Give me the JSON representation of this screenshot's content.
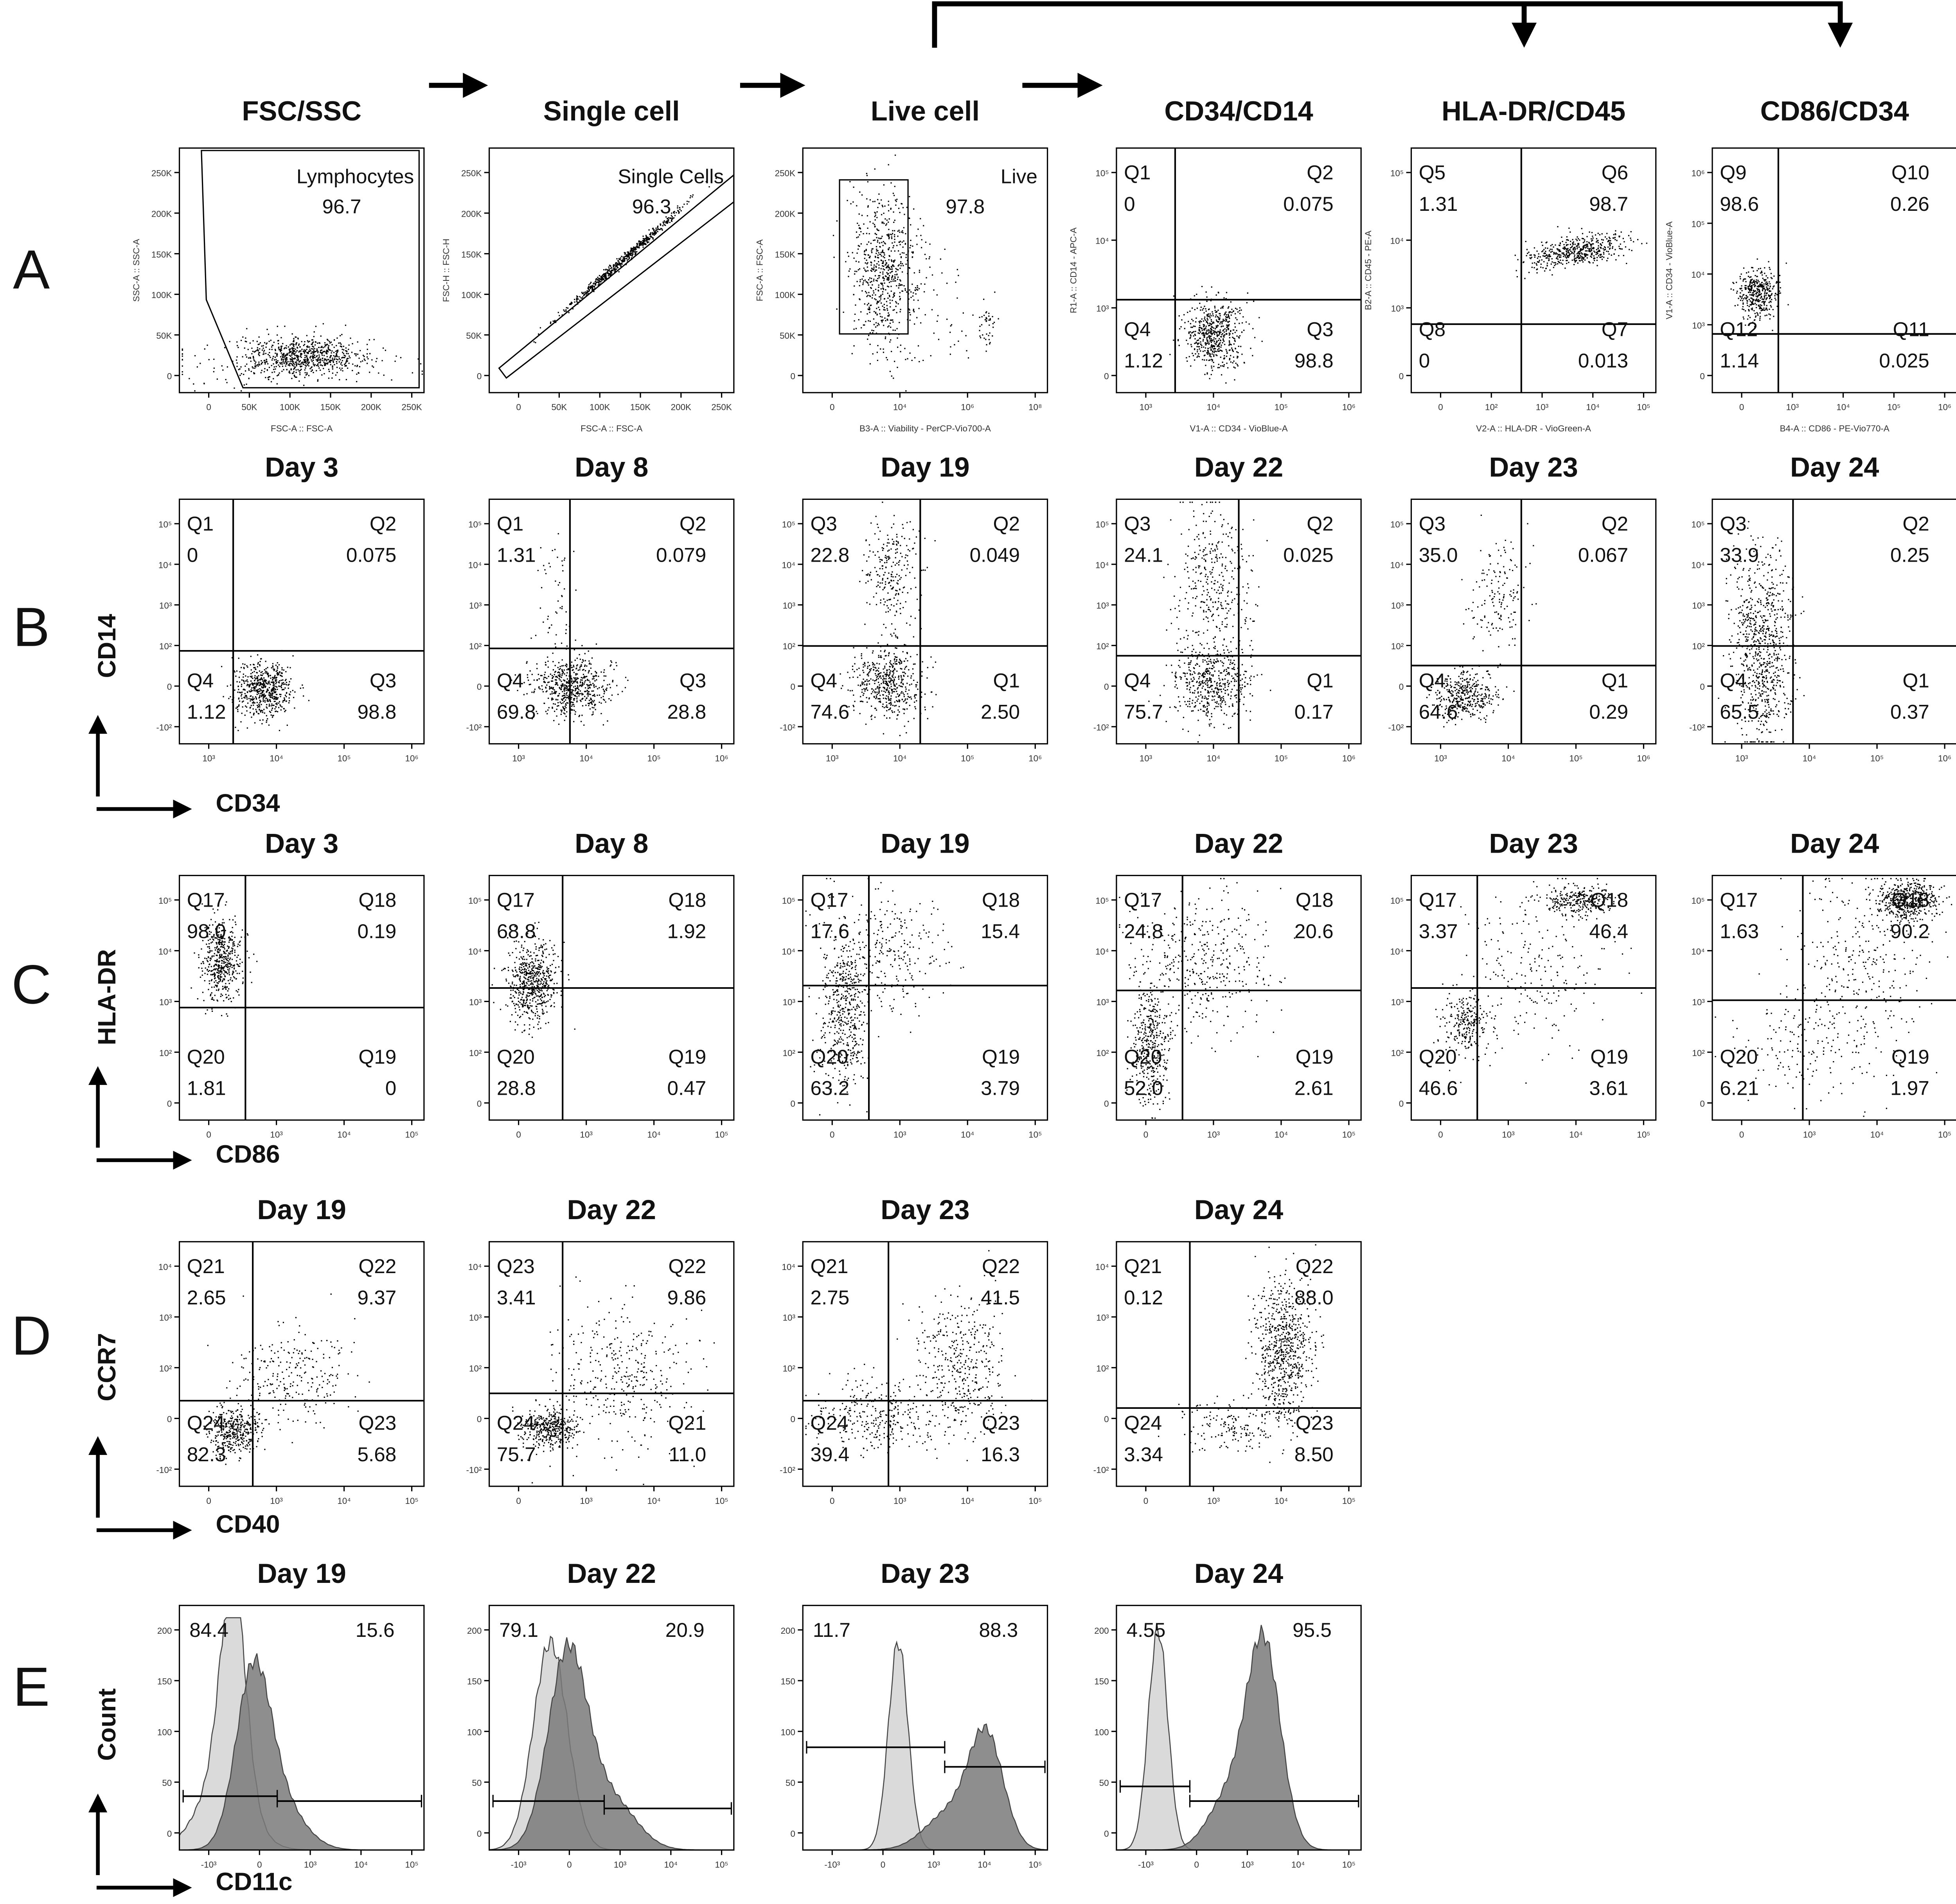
{
  "header_title_groups": null,
  "rows": [
    {
      "label": "A",
      "panels": [
        {
          "title": "FSC/SSC",
          "gate": "Lymphocytes",
          "value": "96.7",
          "x_axis": "FSC-A :: FSC-A",
          "y_axis": "SSC-A :: SSC-A",
          "xticks": [
            "0",
            "50K",
            "100K",
            "150K",
            "200K",
            "250K"
          ],
          "yticks": [
            "0",
            "50K",
            "100K",
            "150K",
            "200K",
            "250K"
          ]
        },
        {
          "title": "Single cell",
          "gate": "Single Cells",
          "value": "96.3",
          "x_axis": "FSC-A :: FSC-A",
          "y_axis": "FSC-H :: FSC-H",
          "xticks": [
            "0",
            "50K",
            "100K",
            "150K",
            "200K",
            "250K"
          ],
          "yticks": [
            "0",
            "50K",
            "100K",
            "150K",
            "200K",
            "250K"
          ]
        },
        {
          "title": "Live cell",
          "gate": "Live",
          "value": "97.8",
          "x_axis": "B3-A :: Viability - PerCP-Vio700-A",
          "y_axis": "FSC-A :: FSC-A",
          "xticks": [
            "0",
            "10⁴",
            "10⁶",
            "10⁸"
          ],
          "yticks": [
            "0",
            "50K",
            "100K",
            "150K",
            "200K",
            "250K"
          ]
        },
        {
          "title": "CD34/CD14",
          "quadrants": [
            {
              "name": "Q1",
              "value": "0"
            },
            {
              "name": "Q2",
              "value": "0.075"
            },
            {
              "name": "Q4",
              "value": "1.12"
            },
            {
              "name": "Q3",
              "value": "98.8"
            }
          ],
          "x_axis": "V1-A :: CD34 - VioBlue-A",
          "y_axis": "R1-A :: CD14 - APC-A",
          "xticks": [
            "10³",
            "10⁴",
            "10⁵",
            "10⁶"
          ],
          "yticks": [
            "0",
            "10³",
            "10⁴",
            "10⁵"
          ]
        },
        {
          "title": "HLA-DR/CD45",
          "quadrants": [
            {
              "name": "Q5",
              "value": "1.31"
            },
            {
              "name": "Q6",
              "value": "98.7"
            },
            {
              "name": "Q8",
              "value": "0"
            },
            {
              "name": "Q7",
              "value": "0.013"
            }
          ],
          "x_axis": "V2-A :: HLA-DR - VioGreen-A",
          "y_axis": "B2-A :: CD45 - PE-A",
          "xticks": [
            "0",
            "10²",
            "10³",
            "10⁴",
            "10⁵"
          ],
          "yticks": [
            "0",
            "10³",
            "10⁴",
            "10⁵"
          ]
        },
        {
          "title": "CD86/CD34",
          "quadrants": [
            {
              "name": "Q9",
              "value": "98.6"
            },
            {
              "name": "Q10",
              "value": "0.26"
            },
            {
              "name": "Q12",
              "value": "1.14"
            },
            {
              "name": "Q11",
              "value": "0.025"
            }
          ],
          "x_axis": "B4-A :: CD86 - PE-Vio770-A",
          "y_axis": "V1-A :: CD34 - VioBlue-A",
          "xticks": [
            "0",
            "10³",
            "10⁴",
            "10⁵",
            "10⁶"
          ],
          "yticks": [
            "0",
            "10³",
            "10⁴",
            "10⁵",
            "10⁶"
          ]
        }
      ]
    },
    {
      "label": "B",
      "x_axis": "CD34",
      "y_axis": "CD14",
      "xticks": [
        "10³",
        "10⁴",
        "10⁵",
        "10⁶"
      ],
      "yticks": [
        "-10²",
        "0",
        "10²",
        "10³",
        "10⁴",
        "10⁵"
      ],
      "panels": [
        {
          "title": "Day 3",
          "quadrants": [
            {
              "name": "Q1",
              "value": "0"
            },
            {
              "name": "Q2",
              "value": "0.075"
            },
            {
              "name": "Q4",
              "value": "1.12"
            },
            {
              "name": "Q3",
              "value": "98.8"
            }
          ]
        },
        {
          "title": "Day 8",
          "quadrants": [
            {
              "name": "Q1",
              "value": "1.31"
            },
            {
              "name": "Q2",
              "value": "0.079"
            },
            {
              "name": "Q4",
              "value": "69.8"
            },
            {
              "name": "Q3",
              "value": "28.8"
            }
          ]
        },
        {
          "title": "Day 19",
          "quadrants": [
            {
              "name": "Q3",
              "value": "22.8"
            },
            {
              "name": "Q2",
              "value": "0.049"
            },
            {
              "name": "Q4",
              "value": "74.6"
            },
            {
              "name": "Q1",
              "value": "2.50"
            }
          ]
        },
        {
          "title": "Day 22",
          "quadrants": [
            {
              "name": "Q3",
              "value": "24.1"
            },
            {
              "name": "Q2",
              "value": "0.025"
            },
            {
              "name": "Q4",
              "value": "75.7"
            },
            {
              "name": "Q1",
              "value": "0.17"
            }
          ]
        },
        {
          "title": "Day 23",
          "quadrants": [
            {
              "name": "Q3",
              "value": "35.0"
            },
            {
              "name": "Q2",
              "value": "0.067"
            },
            {
              "name": "Q4",
              "value": "64.6"
            },
            {
              "name": "Q1",
              "value": "0.29"
            }
          ]
        },
        {
          "title": "Day 24",
          "quadrants": [
            {
              "name": "Q3",
              "value": "33.9"
            },
            {
              "name": "Q2",
              "value": "0.25"
            },
            {
              "name": "Q4",
              "value": "65.5"
            },
            {
              "name": "Q1",
              "value": "0.37"
            }
          ]
        }
      ]
    },
    {
      "label": "C",
      "x_axis": "CD86",
      "y_axis": "HLA-DR",
      "xticks": [
        "0",
        "10³",
        "10⁴",
        "10⁵"
      ],
      "yticks": [
        "0",
        "10²",
        "10³",
        "10⁴",
        "10⁵"
      ],
      "panels": [
        {
          "title": "Day 3",
          "quadrants": [
            {
              "name": "Q17",
              "value": "98.0"
            },
            {
              "name": "Q18",
              "value": "0.19"
            },
            {
              "name": "Q20",
              "value": "1.81"
            },
            {
              "name": "Q19",
              "value": "0"
            }
          ]
        },
        {
          "title": "Day 8",
          "quadrants": [
            {
              "name": "Q17",
              "value": "68.8"
            },
            {
              "name": "Q18",
              "value": "1.92"
            },
            {
              "name": "Q20",
              "value": "28.8"
            },
            {
              "name": "Q19",
              "value": "0.47"
            }
          ]
        },
        {
          "title": "Day 19",
          "quadrants": [
            {
              "name": "Q17",
              "value": "17.6"
            },
            {
              "name": "Q18",
              "value": "15.4"
            },
            {
              "name": "Q20",
              "value": "63.2"
            },
            {
              "name": "Q19",
              "value": "3.79"
            }
          ]
        },
        {
          "title": "Day 22",
          "quadrants": [
            {
              "name": "Q17",
              "value": "24.8"
            },
            {
              "name": "Q18",
              "value": "20.6"
            },
            {
              "name": "Q20",
              "value": "52.0"
            },
            {
              "name": "Q19",
              "value": "2.61"
            }
          ]
        },
        {
          "title": "Day 23",
          "quadrants": [
            {
              "name": "Q17",
              "value": "3.37"
            },
            {
              "name": "Q18",
              "value": "46.4"
            },
            {
              "name": "Q20",
              "value": "46.6"
            },
            {
              "name": "Q19",
              "value": "3.61"
            }
          ]
        },
        {
          "title": "Day 24",
          "quadrants": [
            {
              "name": "Q17",
              "value": "1.63"
            },
            {
              "name": "Q18",
              "value": "90.2"
            },
            {
              "name": "Q20",
              "value": "6.21"
            },
            {
              "name": "Q19",
              "value": "1.97"
            }
          ]
        }
      ]
    },
    {
      "label": "D",
      "x_axis": "CD40",
      "y_axis": "CCR7",
      "xticks": [
        "0",
        "10³",
        "10⁴",
        "10⁵"
      ],
      "yticks": [
        "-10²",
        "0",
        "10²",
        "10³",
        "10⁴"
      ],
      "panels": [
        {
          "title": "Day 19",
          "quadrants": [
            {
              "name": "Q21",
              "value": "2.65"
            },
            {
              "name": "Q22",
              "value": "9.37"
            },
            {
              "name": "Q24",
              "value": "82.3"
            },
            {
              "name": "Q23",
              "value": "5.68"
            }
          ]
        },
        {
          "title": "Day 22",
          "quadrants": [
            {
              "name": "Q23",
              "value": "3.41"
            },
            {
              "name": "Q22",
              "value": "9.86"
            },
            {
              "name": "Q24",
              "value": "75.7"
            },
            {
              "name": "Q21",
              "value": "11.0"
            }
          ]
        },
        {
          "title": "Day 23",
          "quadrants": [
            {
              "name": "Q21",
              "value": "2.75"
            },
            {
              "name": "Q22",
              "value": "41.5"
            },
            {
              "name": "Q24",
              "value": "39.4"
            },
            {
              "name": "Q23",
              "value": "16.3"
            }
          ]
        },
        {
          "title": "Day 24",
          "quadrants": [
            {
              "name": "Q21",
              "value": "0.12"
            },
            {
              "name": "Q22",
              "value": "88.0"
            },
            {
              "name": "Q24",
              "value": "3.34"
            },
            {
              "name": "Q23",
              "value": "8.50"
            }
          ]
        }
      ]
    },
    {
      "label": "E",
      "x_axis": "CD11c",
      "y_axis": "Count",
      "xticks": [
        "-10³",
        "0",
        "10³",
        "10⁴",
        "10⁵"
      ],
      "yticks": [
        "0",
        "50",
        "100",
        "150",
        "200"
      ],
      "panels": [
        {
          "title": "Day 19",
          "left": "84.4",
          "right": "15.6"
        },
        {
          "title": "Day 22",
          "left": "79.1",
          "right": "20.9"
        },
        {
          "title": "Day 23",
          "left": "11.7",
          "right": "88.3"
        },
        {
          "title": "Day 24",
          "left": "4.55",
          "right": "95.5"
        }
      ]
    }
  ]
}
